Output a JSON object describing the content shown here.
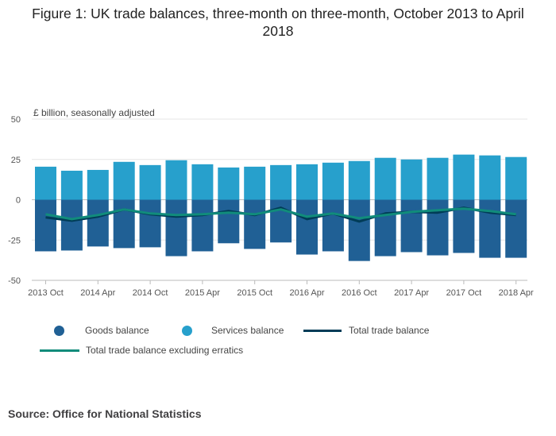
{
  "chart_data": {
    "type": "bar+line",
    "title": "Figure 1: UK trade balances, three-month on three-month, October 2013 to April 2018",
    "ylabel": "£ billion, seasonally adjusted",
    "ylim": [
      -50,
      50
    ],
    "yticks": [
      50,
      25,
      0,
      -25,
      -50
    ],
    "grid": true,
    "xtick_labels": [
      "2013 Oct",
      "2014 Apr",
      "2014 Oct",
      "2015 Apr",
      "2015 Oct",
      "2016 Apr",
      "2016 Oct",
      "2017 Apr",
      "2017 Oct",
      "2018 Apr"
    ],
    "periods": 19,
    "series": [
      {
        "name": "Goods balance",
        "kind": "bar",
        "color": "#206095",
        "values": [
          -32,
          -31.5,
          -29,
          -30,
          -29.5,
          -35,
          -32,
          -27,
          -30.5,
          -26.5,
          -34,
          -32,
          -38,
          -35,
          -32.5,
          -34.5,
          -33,
          -36,
          -36
        ]
      },
      {
        "name": "Services balance",
        "kind": "bar",
        "color": "#27a0cc",
        "values": [
          20.5,
          18,
          18.5,
          23.5,
          21.5,
          24.5,
          22,
          20,
          20.5,
          21.5,
          22,
          23,
          24,
          26,
          25,
          26,
          28,
          27.5,
          26.5
        ]
      },
      {
        "name": "Total trade balance",
        "kind": "line",
        "color": "#003c57",
        "values": [
          -11,
          -13,
          -10.5,
          -6,
          -9,
          -10.5,
          -9.5,
          -7,
          -9.5,
          -5,
          -12,
          -8.5,
          -13.5,
          -8.5,
          -7.5,
          -8,
          -5,
          -8,
          -9.5
        ]
      },
      {
        "name": "Total trade balance excluding erratics",
        "kind": "line",
        "color": "#118c7b",
        "values": [
          -9,
          -12,
          -9.5,
          -6,
          -8.5,
          -9.5,
          -9,
          -8,
          -9,
          -6,
          -10.5,
          -8.5,
          -11.5,
          -9.5,
          -7.5,
          -6.5,
          -5.5,
          -7,
          -9
        ]
      }
    ]
  },
  "legend": {
    "goods": "Goods balance",
    "services": "Services balance",
    "total": "Total trade balance",
    "excl_erratics": "Total trade balance excluding erratics"
  },
  "source": "Source: Office for National Statistics"
}
